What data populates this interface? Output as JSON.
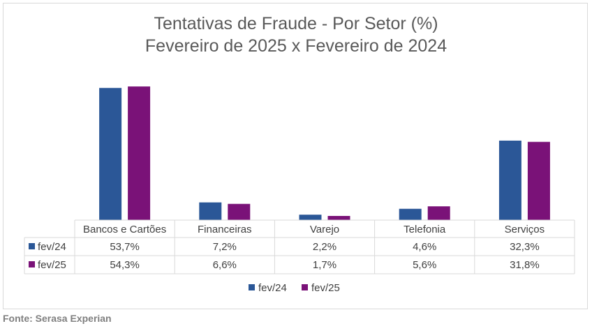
{
  "title": "Tentativas de Fraude - Por Setor (%)",
  "subtitle": "Fevereiro de 2025 x Fevereiro de 2024",
  "source": "Fonte: Serasa Experian",
  "colors": {
    "fev24": "#2b5797",
    "fev25": "#7a1278"
  },
  "chart_data": {
    "type": "bar",
    "title": "Tentativas de Fraude - Por Setor (%)",
    "subtitle": "Fevereiro de 2025 x Fevereiro de 2024",
    "categories": [
      "Bancos e Cartões",
      "Financeiras",
      "Varejo",
      "Telefonia",
      "Serviços"
    ],
    "series": [
      {
        "name": "fev/24",
        "color": "#2b5797",
        "values": [
          53.7,
          7.2,
          2.2,
          4.6,
          32.3
        ],
        "labels": [
          "53,7%",
          "7,2%",
          "2,2%",
          "4,6%",
          "32,3%"
        ]
      },
      {
        "name": "fev/25",
        "color": "#7a1278",
        "values": [
          54.3,
          6.6,
          1.7,
          5.6,
          31.8
        ],
        "labels": [
          "54,3%",
          "6,6%",
          "1,7%",
          "5,6%",
          "31,8%"
        ]
      }
    ],
    "ylim": [
      0,
      60
    ],
    "data_table": true,
    "legend": "bottom",
    "grid": false
  }
}
